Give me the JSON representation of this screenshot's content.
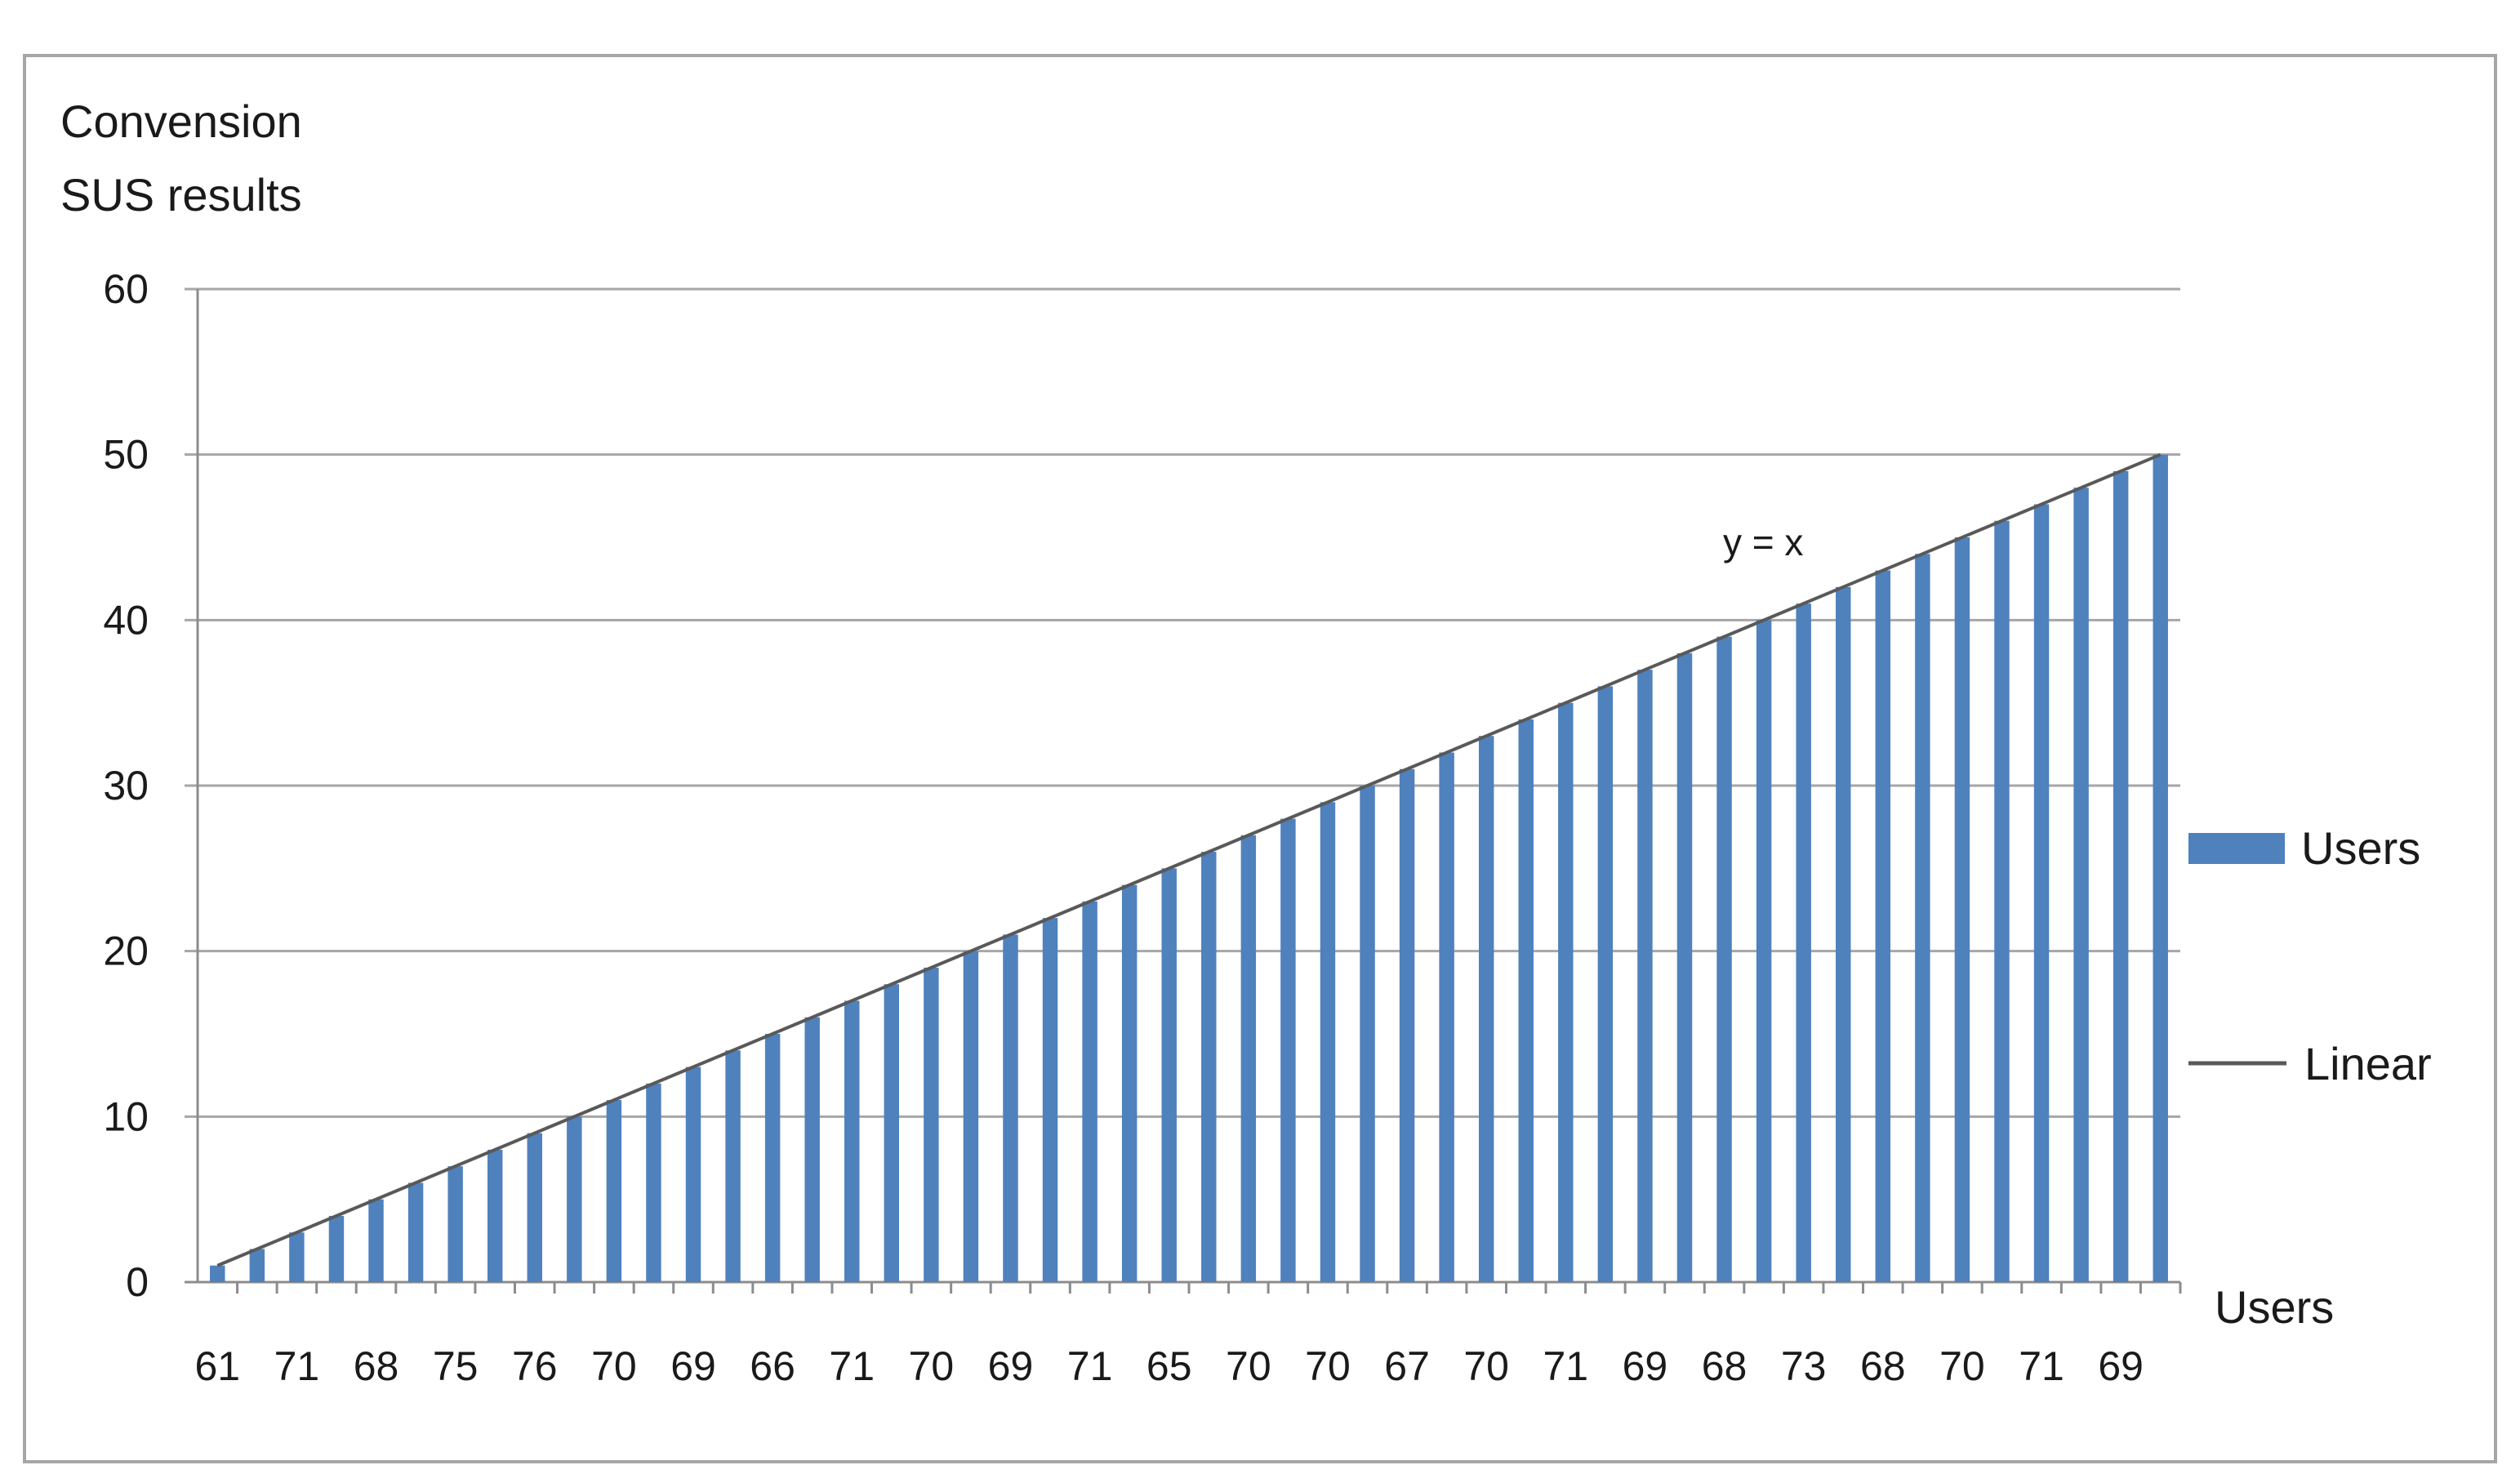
{
  "chart_data": {
    "type": "bar",
    "title_lines": [
      "Convension",
      "SUS results"
    ],
    "xlabel": "Users",
    "ylabel": "",
    "ylim": [
      0,
      60
    ],
    "yticks": [
      0,
      10,
      20,
      30,
      40,
      50,
      60
    ],
    "grid": true,
    "legend_position": "right",
    "x_tick_labels": [
      "61",
      "71",
      "68",
      "75",
      "76",
      "70",
      "69",
      "66",
      "71",
      "70",
      "69",
      "71",
      "65",
      "70",
      "70",
      "67",
      "70",
      "71",
      "69",
      "68",
      "73",
      "68",
      "70",
      "71",
      "69"
    ],
    "series": [
      {
        "name": "Users",
        "kind": "bar",
        "color": "#4f81bd",
        "values": [
          1,
          2,
          3,
          4,
          5,
          6,
          7,
          8,
          9,
          10,
          11,
          12,
          13,
          14,
          15,
          16,
          17,
          18,
          19,
          20,
          21,
          22,
          23,
          24,
          25,
          26,
          27,
          28,
          29,
          30,
          31,
          32,
          33,
          34,
          35,
          36,
          37,
          38,
          39,
          40,
          41,
          42,
          43,
          44,
          45,
          46,
          47,
          48,
          49,
          50
        ]
      },
      {
        "name": "Linear",
        "kind": "trendline",
        "color": "#595959",
        "from": 1,
        "to": 50
      }
    ],
    "annotation": "y = x"
  }
}
